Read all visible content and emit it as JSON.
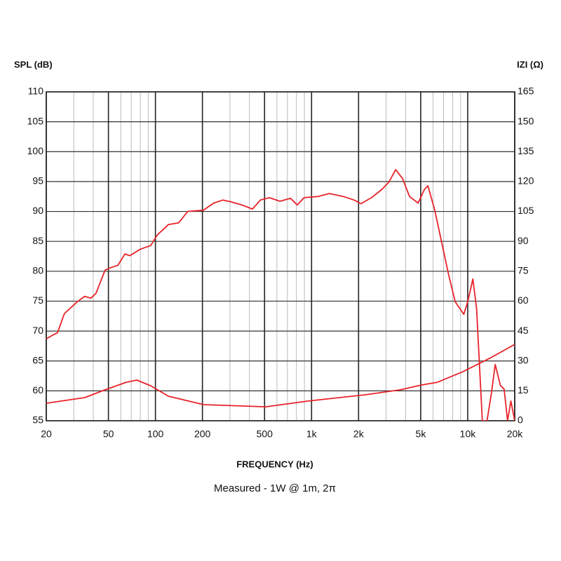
{
  "chart_data": {
    "type": "line",
    "y_label": "SPL (dB)",
    "y2_label": "IZI (Ω)",
    "x_label": "FREQUENCY (Hz)",
    "subtitle": "Measured - 1W @ 1m, 2π",
    "xlog": true,
    "grid": true,
    "minor_grid": true,
    "xlim": [
      20,
      20000
    ],
    "xticks": [
      20,
      50,
      100,
      200,
      500,
      {
        "value": 1000,
        "label": "1k"
      },
      {
        "value": 2000,
        "label": "2k"
      },
      {
        "value": 5000,
        "label": "5k"
      },
      {
        "value": 10000,
        "label": "10k"
      },
      {
        "value": 20000,
        "label": "20k"
      }
    ],
    "ylim": [
      55,
      110
    ],
    "yticks": [
      55,
      60,
      65,
      70,
      75,
      80,
      85,
      90,
      95,
      100,
      105,
      110
    ],
    "y2lim": [
      0,
      165
    ],
    "y2ticks": [
      0,
      15,
      30,
      45,
      60,
      75,
      90,
      105,
      120,
      135,
      150,
      165
    ],
    "series": [
      {
        "color": "#e8232a",
        "x": [
          20,
          21.9,
          23.6,
          26.1,
          31.6,
          35.2,
          38.6,
          41.6,
          47.6,
          51.8,
          57.5,
          63.8,
          68.5,
          80,
          93.3,
          103,
          121,
          141,
          161,
          203,
          236,
          270,
          306,
          357,
          418,
          470,
          537,
          627,
          733,
          809,
          896,
          1101,
          1299,
          1598,
          1875,
          2070,
          2418,
          2823,
          3125,
          3456,
          3823,
          4238,
          4812,
          5285,
          5560,
          6150,
          6800,
          7520,
          8310,
          9440,
          10020,
          10790,
          11400,
          12400,
          13300,
          14200,
          15000,
          15400,
          16200,
          17100,
          18000,
          18900,
          20000
        ],
        "values": [
          68.7,
          69.3,
          69.7,
          72.9,
          74.9,
          75.8,
          75.5,
          76.3,
          80.2,
          80.6,
          81.0,
          82.9,
          82.6,
          83.7,
          84.3,
          86.1,
          87.8,
          88.1,
          90,
          90.2,
          91.4,
          91.9,
          91.6,
          91.1,
          90.4,
          91.9,
          92.3,
          91.7,
          92.2,
          91.1,
          92.3,
          92.5,
          93.0,
          92.5,
          91.9,
          91.3,
          92.3,
          93.7,
          94.9,
          97.0,
          95.5,
          92.5,
          91.4,
          93.7,
          94.3,
          90.2,
          84.9,
          79.6,
          74.9,
          72.8,
          75.0,
          78.7,
          73.8,
          55,
          55,
          59.7,
          64.4,
          63.2,
          60.9,
          60.3,
          55,
          58.3,
          55
        ]
      },
      {
        "color": "#e8232a",
        "axis": "y2",
        "x": [
          20,
          35.2,
          47.6,
          65,
          76,
          93,
          121,
          203,
          510,
          950,
          2200,
          3700,
          5030,
          6400,
          9300,
          14100,
          20000
        ],
        "values": [
          8.8,
          11.6,
          15.5,
          19.3,
          20.4,
          17.6,
          12.3,
          8.1,
          7.0,
          9.9,
          13.0,
          15.5,
          17.9,
          19.3,
          24.6,
          31.7,
          38.3
        ]
      }
    ]
  }
}
